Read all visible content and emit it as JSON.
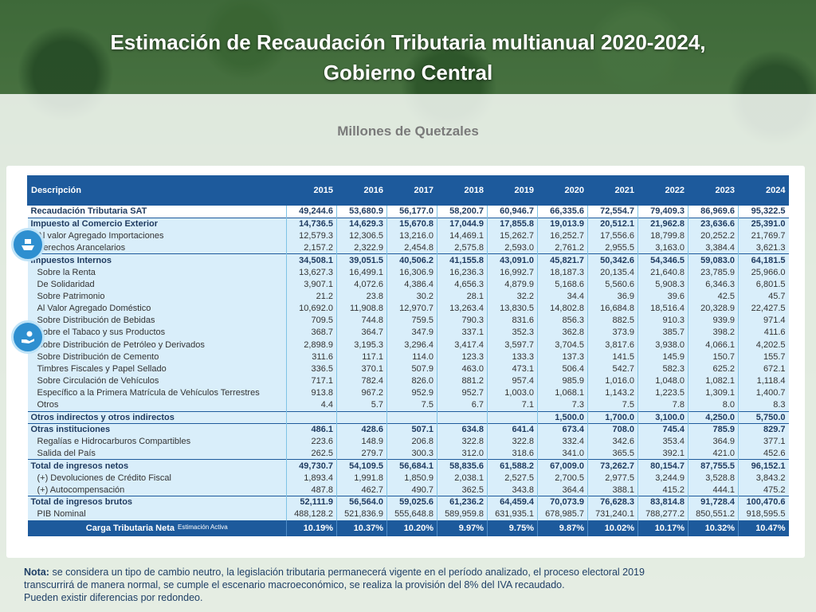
{
  "title_line1": "Estimación de Recaudación Tributaria multianual 2020-2024,",
  "title_line2": "Gobierno Central",
  "subtitle": "Millones de Quetzales",
  "header": {
    "desc": "Descripción",
    "years": [
      "2015",
      "2016",
      "2017",
      "2018",
      "2019",
      "2020",
      "2021",
      "2022",
      "2023",
      "2024"
    ]
  },
  "rows": [
    {
      "label": "Recaudación Tributaria SAT",
      "values": [
        "49,244.6",
        "53,680.9",
        "56,177.0",
        "58,200.7",
        "60,946.7",
        "66,335.6",
        "72,554.7",
        "79,409.3",
        "86,969.6",
        "95,322.5"
      ]
    },
    {
      "label": "Impuesto al Comercio Exterior",
      "values": [
        "14,736.5",
        "14,629.3",
        "15,670.8",
        "17,044.9",
        "17,855.8",
        "19,013.9",
        "20,512.1",
        "21,962.8",
        "23,636.6",
        "25,391.0"
      ]
    },
    {
      "label": "Al valor Agregado Importaciones",
      "values": [
        "12,579.3",
        "12,306.5",
        "13,216.0",
        "14,469.1",
        "15,262.7",
        "16,252.7",
        "17,556.6",
        "18,799.8",
        "20,252.2",
        "21,769.7"
      ]
    },
    {
      "label": "Derechos Arancelarios",
      "values": [
        "2,157.2",
        "2,322.9",
        "2,454.8",
        "2,575.8",
        "2,593.0",
        "2,761.2",
        "2,955.5",
        "3,163.0",
        "3,384.4",
        "3,621.3"
      ]
    },
    {
      "label": "Impuestos Internos",
      "values": [
        "34,508.1",
        "39,051.5",
        "40,506.2",
        "41,155.8",
        "43,091.0",
        "45,821.7",
        "50,342.6",
        "54,346.5",
        "59,083.0",
        "64,181.5"
      ]
    },
    {
      "label": "Sobre la Renta",
      "values": [
        "13,627.3",
        "16,499.1",
        "16,306.9",
        "16,236.3",
        "16,992.7",
        "18,187.3",
        "20,135.4",
        "21,640.8",
        "23,785.9",
        "25,966.0"
      ]
    },
    {
      "label": "De Solidaridad",
      "values": [
        "3,907.1",
        "4,072.6",
        "4,386.4",
        "4,656.3",
        "4,879.9",
        "5,168.6",
        "5,560.6",
        "5,908.3",
        "6,346.3",
        "6,801.5"
      ]
    },
    {
      "label": "Sobre Patrimonio",
      "values": [
        "21.2",
        "23.8",
        "30.2",
        "28.1",
        "32.2",
        "34.4",
        "36.9",
        "39.6",
        "42.5",
        "45.7"
      ]
    },
    {
      "label": "Al Valor Agregado Doméstico",
      "values": [
        "10,692.0",
        "11,908.8",
        "12,970.7",
        "13,263.4",
        "13,830.5",
        "14,802.8",
        "16,684.8",
        "18,516.4",
        "20,328.9",
        "22,427.5"
      ]
    },
    {
      "label": "Sobre Distribución de Bebidas",
      "values": [
        "709.5",
        "744.8",
        "759.5",
        "790.3",
        "831.6",
        "856.3",
        "882.5",
        "910.3",
        "939.9",
        "971.4"
      ]
    },
    {
      "label": "Sobre el Tabaco y sus Productos",
      "values": [
        "368.7",
        "364.7",
        "347.9",
        "337.1",
        "352.3",
        "362.8",
        "373.9",
        "385.7",
        "398.2",
        "411.6"
      ]
    },
    {
      "label": "Sobre Distribución de Petróleo y Derivados",
      "values": [
        "2,898.9",
        "3,195.3",
        "3,296.4",
        "3,417.4",
        "3,597.7",
        "3,704.5",
        "3,817.6",
        "3,938.0",
        "4,066.1",
        "4,202.5"
      ]
    },
    {
      "label": "Sobre Distribución de Cemento",
      "values": [
        "311.6",
        "117.1",
        "114.0",
        "123.3",
        "133.3",
        "137.3",
        "141.5",
        "145.9",
        "150.7",
        "155.7"
      ]
    },
    {
      "label": "Timbres Fiscales y Papel Sellado",
      "values": [
        "336.5",
        "370.1",
        "507.9",
        "463.0",
        "473.1",
        "506.4",
        "542.7",
        "582.3",
        "625.2",
        "672.1"
      ]
    },
    {
      "label": "Sobre Circulación de Vehículos",
      "values": [
        "717.1",
        "782.4",
        "826.0",
        "881.2",
        "957.4",
        "985.9",
        "1,016.0",
        "1,048.0",
        "1,082.1",
        "1,118.4"
      ]
    },
    {
      "label": "Específico a la Primera Matrícula de Vehículos Terrestres",
      "values": [
        "913.8",
        "967.2",
        "952.9",
        "952.7",
        "1,003.0",
        "1,068.1",
        "1,143.2",
        "1,223.5",
        "1,309.1",
        "1,400.7"
      ]
    },
    {
      "label": "Otros",
      "values": [
        "4.4",
        "5.7",
        "7.5",
        "6.7",
        "7.1",
        "7.3",
        "7.5",
        "7.8",
        "8.0",
        "8.3"
      ]
    },
    {
      "label": "Otros indirectos y otros indirectos",
      "values": [
        "",
        "",
        "",
        "",
        "",
        "1,500.0",
        "1,700.0",
        "3,100.0",
        "4,250.0",
        "5,750.0"
      ]
    },
    {
      "label": "Otras instituciones",
      "values": [
        "486.1",
        "428.6",
        "507.1",
        "634.8",
        "641.4",
        "673.4",
        "708.0",
        "745.4",
        "785.9",
        "829.7"
      ]
    },
    {
      "label": "Regalías e Hidrocarburos Compartibles",
      "values": [
        "223.6",
        "148.9",
        "206.8",
        "322.8",
        "322.8",
        "332.4",
        "342.6",
        "353.4",
        "364.9",
        "377.1"
      ]
    },
    {
      "label": "Salida del País",
      "values": [
        "262.5",
        "279.7",
        "300.3",
        "312.0",
        "318.6",
        "341.0",
        "365.5",
        "392.1",
        "421.0",
        "452.6"
      ]
    },
    {
      "label": "Total de ingresos netos",
      "values": [
        "49,730.7",
        "54,109.5",
        "56,684.1",
        "58,835.6",
        "61,588.2",
        "67,009.0",
        "73,262.7",
        "80,154.7",
        "87,755.5",
        "96,152.1"
      ]
    },
    {
      "label": "(+) Devoluciones de Crédito Fiscal",
      "values": [
        "1,893.4",
        "1,991.8",
        "1,850.9",
        "2,038.1",
        "2,527.5",
        "2,700.5",
        "2,977.5",
        "3,244.9",
        "3,528.8",
        "3,843.2"
      ]
    },
    {
      "label": "(+) Autocompensación",
      "values": [
        "487.8",
        "462.7",
        "490.7",
        "362.5",
        "343.8",
        "364.4",
        "388.1",
        "415.2",
        "444.1",
        "475.2"
      ]
    },
    {
      "label": "Total de ingresos brutos",
      "values": [
        "52,111.9",
        "56,564.0",
        "59,025.6",
        "61,236.2",
        "64,459.4",
        "70,073.9",
        "76,628.3",
        "83,814.8",
        "91,728.4",
        "100,470.6"
      ]
    },
    {
      "label": "PIB Nominal",
      "values": [
        "488,128.2",
        "521,836.9",
        "555,648.8",
        "589,959.8",
        "631,935.1",
        "678,985.7",
        "731,240.1",
        "788,277.2",
        "850,551.2",
        "918,595.5"
      ]
    }
  ],
  "footer": {
    "label": "Carga Tributaria Neta",
    "note": "Estimación Activa",
    "values": [
      "10.19%",
      "10.37%",
      "10.20%",
      "9.97%",
      "9.75%",
      "9.87%",
      "10.02%",
      "10.17%",
      "10.32%",
      "10.47%"
    ]
  },
  "note": {
    "label": "Nota:",
    "line1": "se considera un tipo de cambio neutro, la legislación tributaria permanecerá vigente en el período analizado, el proceso electoral 2019",
    "line2": "transcurrirá de manera normal, se cumple el escenario macroeconómico, se realiza la provisión del 8% del IVA recaudado.",
    "line3": "Pueden existir diferencias por redondeo."
  },
  "icons": [
    "ship-icon",
    "hand-coins-icon"
  ]
}
